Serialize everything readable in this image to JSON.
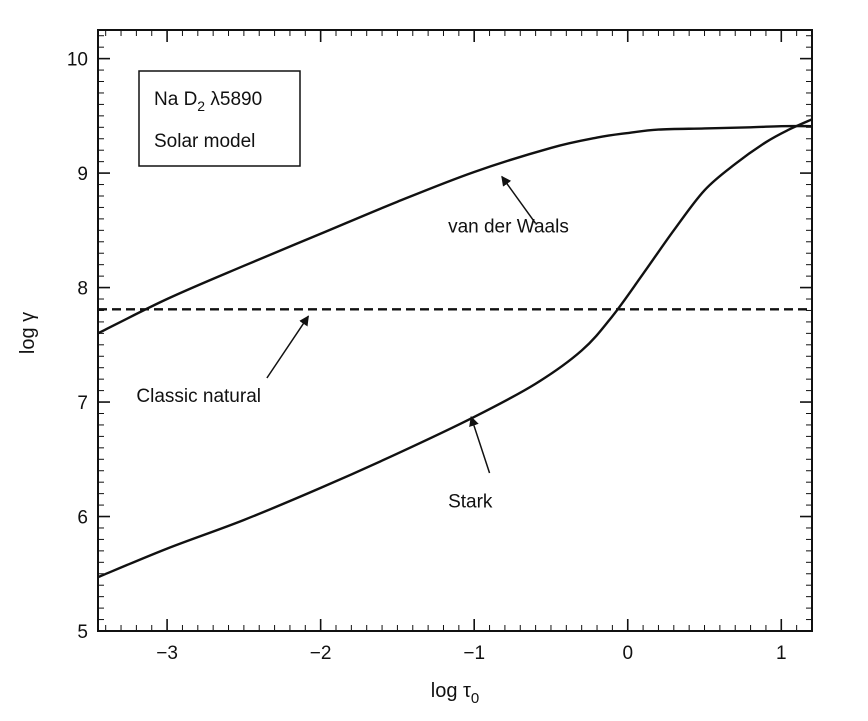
{
  "chart_data": {
    "type": "line",
    "xlabel": "log τ",
    "xlabel_sub": "0",
    "ylabel": "log γ",
    "xlim": [
      -3.45,
      1.2
    ],
    "ylim": [
      5,
      10.25
    ],
    "xticks": [
      {
        "value": -3,
        "label": "−3"
      },
      {
        "value": -2,
        "label": "−2"
      },
      {
        "value": -1,
        "label": "−1"
      },
      {
        "value": 0,
        "label": "0"
      },
      {
        "value": 1,
        "label": "1"
      }
    ],
    "yticks": [
      {
        "value": 5,
        "label": "5"
      },
      {
        "value": 6,
        "label": "6"
      },
      {
        "value": 7,
        "label": "7"
      },
      {
        "value": 8,
        "label": "8"
      },
      {
        "value": 9,
        "label": "9"
      },
      {
        "value": 10,
        "label": "10"
      }
    ],
    "grid": false,
    "legend_box": {
      "position": "top-left",
      "line1": "Na D",
      "line1_sub": "2",
      "line1_rest": " λ5890",
      "line2": "Solar model"
    },
    "series": [
      {
        "name": "van der Waals",
        "style": "solid",
        "x": [
          -3.45,
          -3.0,
          -2.5,
          -2.0,
          -1.5,
          -1.0,
          -0.5,
          -0.2,
          0.0,
          0.2,
          0.5,
          0.8,
          1.0,
          1.2
        ],
        "y": [
          7.6,
          7.9,
          8.19,
          8.47,
          8.75,
          9.01,
          9.22,
          9.31,
          9.35,
          9.38,
          9.39,
          9.4,
          9.41,
          9.41
        ]
      },
      {
        "name": "Classic natural",
        "style": "dashed",
        "x": [
          -3.45,
          1.2
        ],
        "y": [
          7.81,
          7.81
        ]
      },
      {
        "name": "Stark",
        "style": "solid",
        "x": [
          -3.45,
          -3.0,
          -2.5,
          -2.0,
          -1.5,
          -1.0,
          -0.6,
          -0.3,
          -0.1,
          0.1,
          0.3,
          0.5,
          0.7,
          0.9,
          1.05,
          1.2
        ],
        "y": [
          5.47,
          5.72,
          5.97,
          6.25,
          6.55,
          6.87,
          7.16,
          7.45,
          7.75,
          8.12,
          8.5,
          8.85,
          9.08,
          9.27,
          9.38,
          9.47
        ]
      }
    ],
    "annotations": [
      {
        "text": "van der Waals",
        "text_at": [
          -1.17,
          8.48
        ],
        "arrow_from": [
          -0.6,
          8.56
        ],
        "arrow_to": [
          -0.82,
          8.97
        ]
      },
      {
        "text": "Classic natural",
        "text_at": [
          -3.2,
          7.0
        ],
        "arrow_from": [
          -2.35,
          7.21
        ],
        "arrow_to": [
          -2.08,
          7.75
        ]
      },
      {
        "text": "Stark",
        "text_at": [
          -1.17,
          6.08
        ],
        "arrow_from": [
          -0.9,
          6.38
        ],
        "arrow_to": [
          -1.02,
          6.87
        ]
      }
    ]
  }
}
